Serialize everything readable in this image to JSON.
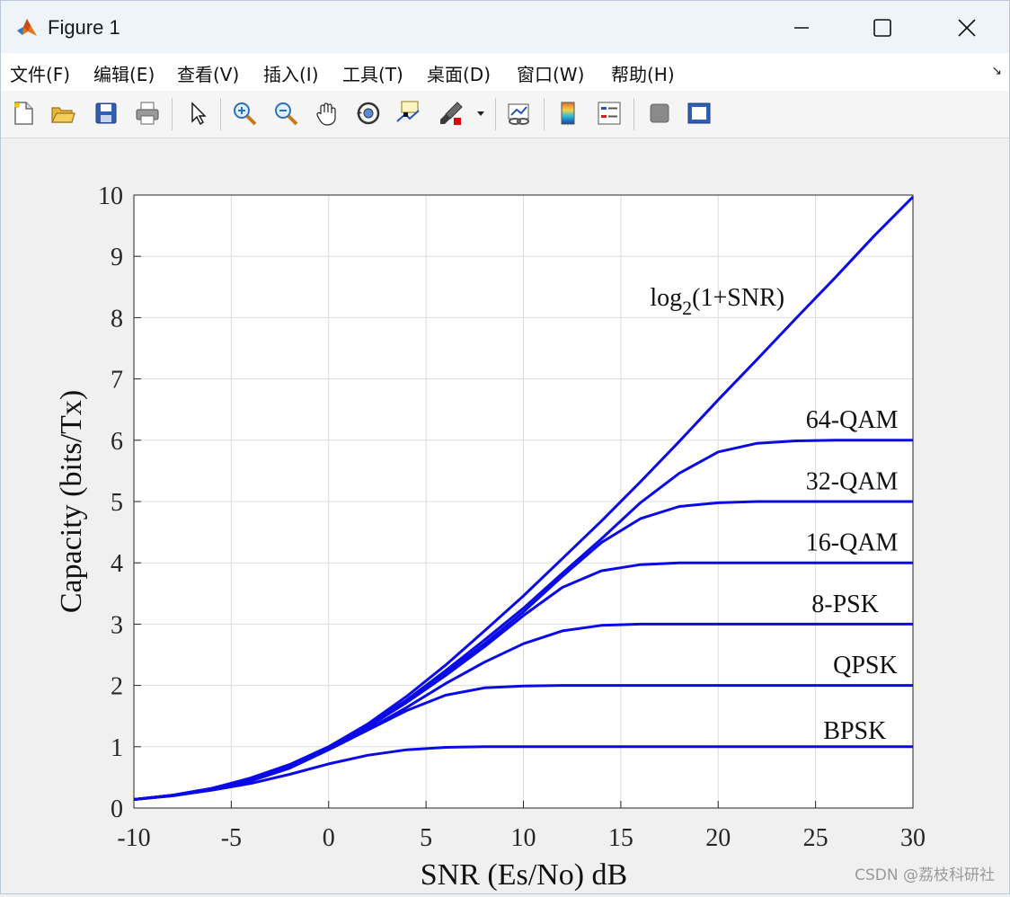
{
  "window": {
    "title": "Figure 1",
    "controls": [
      "minimize",
      "maximize",
      "close"
    ]
  },
  "menu": {
    "items": [
      "文件(F)",
      "编辑(E)",
      "查看(V)",
      "插入(I)",
      "工具(T)",
      "桌面(D)",
      "窗口(W)",
      "帮助(H)"
    ]
  },
  "toolbar": {
    "tools": [
      "new-figure-icon",
      "open-file-icon",
      "save-icon",
      "print-icon",
      "pointer-icon",
      "zoom-in-icon",
      "zoom-out-icon",
      "pan-hand-icon",
      "rotate-3d-icon",
      "data-cursor-icon",
      "brush-icon",
      "link-plot-icon",
      "colorbar-icon",
      "legend-icon",
      "hide-plot-tools-icon",
      "show-plot-tools-icon"
    ]
  },
  "watermark": "CSDN @荔枝科研社",
  "colors": {
    "line": "#0a0ae6",
    "grid": "#dcdcdc",
    "axes_bg": "#ffffff"
  },
  "chart_data": {
    "type": "line",
    "title": "",
    "xlabel": "SNR (Es/No) dB",
    "ylabel": "Capacity (bits/Tx)",
    "xlim": [
      -10,
      30
    ],
    "ylim": [
      0,
      10
    ],
    "xticks": [
      "-10",
      "-5",
      "0",
      "5",
      "10",
      "15",
      "20",
      "25",
      "30"
    ],
    "yticks": [
      "0",
      "1",
      "2",
      "3",
      "4",
      "5",
      "6",
      "7",
      "8",
      "9",
      "10"
    ],
    "grid": true,
    "series": [
      {
        "name": "log2(1+SNR)",
        "label_main": "log",
        "label_sub": "2",
        "label_rest": "(1+SNR)",
        "x": [
          -10,
          -8,
          -6,
          -4,
          -2,
          0,
          2,
          4,
          6,
          8,
          10,
          12,
          14,
          16,
          18,
          20,
          22,
          24,
          26,
          28,
          30
        ],
        "y": [
          0.14,
          0.21,
          0.32,
          0.49,
          0.71,
          1.0,
          1.37,
          1.82,
          2.33,
          2.89,
          3.46,
          4.07,
          4.68,
          5.32,
          5.98,
          6.66,
          7.32,
          7.99,
          8.65,
          9.33,
          9.97
        ]
      },
      {
        "name": "64-QAM",
        "x": [
          -10,
          -8,
          -6,
          -4,
          -2,
          0,
          2,
          4,
          6,
          8,
          10,
          12,
          14,
          16,
          18,
          20,
          22,
          24,
          26,
          28,
          30
        ],
        "y": [
          0.14,
          0.21,
          0.32,
          0.48,
          0.7,
          0.98,
          1.34,
          1.76,
          2.24,
          2.74,
          3.26,
          3.83,
          4.39,
          4.98,
          5.46,
          5.81,
          5.95,
          5.99,
          6.0,
          6.0,
          6.0
        ]
      },
      {
        "name": "32-QAM",
        "x": [
          -10,
          -8,
          -6,
          -4,
          -2,
          0,
          2,
          4,
          6,
          8,
          10,
          12,
          14,
          16,
          18,
          20,
          22,
          24,
          26,
          28,
          30
        ],
        "y": [
          0.14,
          0.21,
          0.32,
          0.48,
          0.7,
          0.97,
          1.33,
          1.74,
          2.2,
          2.68,
          3.2,
          3.78,
          4.33,
          4.72,
          4.92,
          4.98,
          5.0,
          5.0,
          5.0,
          5.0,
          5.0
        ]
      },
      {
        "name": "16-QAM",
        "x": [
          -10,
          -8,
          -6,
          -4,
          -2,
          0,
          2,
          4,
          6,
          8,
          10,
          12,
          14,
          16,
          18,
          20,
          22,
          24,
          26,
          28,
          30
        ],
        "y": [
          0.14,
          0.21,
          0.32,
          0.48,
          0.69,
          0.97,
          1.32,
          1.72,
          2.16,
          2.63,
          3.14,
          3.6,
          3.87,
          3.97,
          4.0,
          4.0,
          4.0,
          4.0,
          4.0,
          4.0,
          4.0
        ]
      },
      {
        "name": "8-PSK",
        "x": [
          -10,
          -8,
          -6,
          -4,
          -2,
          0,
          2,
          4,
          6,
          8,
          10,
          12,
          14,
          16,
          18,
          20,
          22,
          24,
          26,
          28,
          30
        ],
        "y": [
          0.14,
          0.21,
          0.32,
          0.48,
          0.69,
          0.96,
          1.28,
          1.64,
          2.03,
          2.38,
          2.68,
          2.89,
          2.98,
          3.0,
          3.0,
          3.0,
          3.0,
          3.0,
          3.0,
          3.0,
          3.0
        ]
      },
      {
        "name": "QPSK",
        "x": [
          -10,
          -8,
          -6,
          -4,
          -2,
          0,
          2,
          4,
          6,
          8,
          10,
          12,
          14,
          16,
          18,
          20,
          22,
          24,
          26,
          28,
          30
        ],
        "y": [
          0.14,
          0.2,
          0.3,
          0.44,
          0.65,
          0.95,
          1.27,
          1.59,
          1.84,
          1.96,
          1.99,
          2.0,
          2.0,
          2.0,
          2.0,
          2.0,
          2.0,
          2.0,
          2.0,
          2.0,
          2.0
        ]
      },
      {
        "name": "BPSK",
        "x": [
          -10,
          -8,
          -6,
          -4,
          -2,
          0,
          2,
          4,
          6,
          8,
          10,
          12,
          14,
          16,
          18,
          20,
          22,
          24,
          26,
          28,
          30
        ],
        "y": [
          0.14,
          0.2,
          0.29,
          0.4,
          0.55,
          0.72,
          0.86,
          0.95,
          0.99,
          1.0,
          1.0,
          1.0,
          1.0,
          1.0,
          1.0,
          1.0,
          1.0,
          1.0,
          1.0,
          1.0,
          1.0
        ]
      }
    ],
    "annotations": [
      {
        "series": "64-QAM",
        "x": 24.5,
        "y": 6.2
      },
      {
        "series": "32-QAM",
        "x": 24.5,
        "y": 5.2
      },
      {
        "series": "16-QAM",
        "x": 24.5,
        "y": 4.2
      },
      {
        "series": "8-PSK",
        "x": 24.8,
        "y": 3.2
      },
      {
        "series": "QPSK",
        "x": 25.9,
        "y": 2.2
      },
      {
        "series": "BPSK",
        "x": 25.4,
        "y": 1.13
      },
      {
        "series": "log2(1+SNR)",
        "x": 16.5,
        "y": 8.2
      }
    ]
  }
}
